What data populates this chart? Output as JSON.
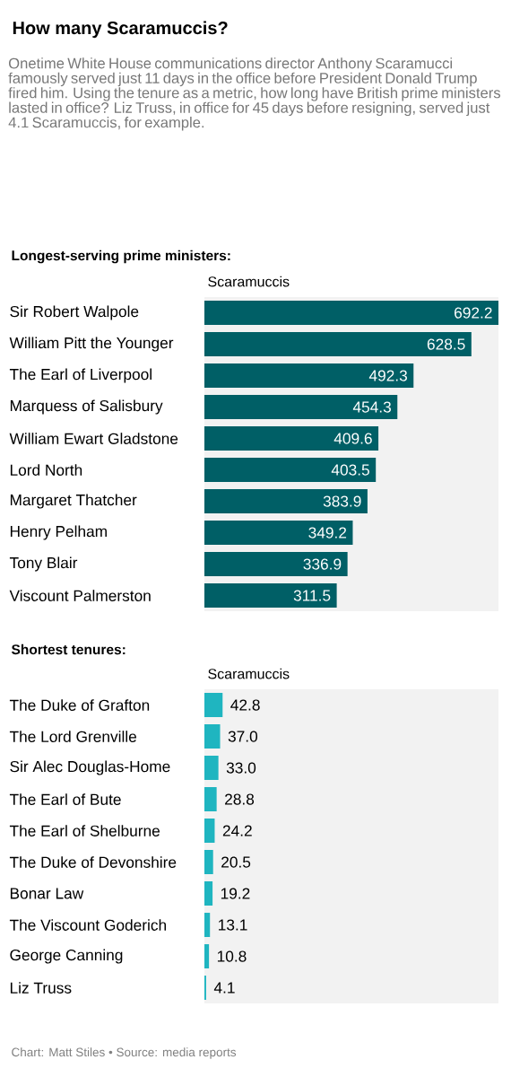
{
  "chart_data": [
    {
      "type": "bar",
      "orientation": "horizontal",
      "title": "How many Scaramuccis?",
      "subtitle": "Onetime White House communications director Anthony Scaramucci famously served just 11 days in the office before President Donald Trump fired him. Using the tenure as a metric, how long have British prime ministers lasted in office? Liz Truss, in office for 45 days before resigning, served just 4.1 Scaramuccis, for example.",
      "annotations": [
        "Longest-serving prime ministers:"
      ],
      "xlabel": "Scaramuccis",
      "categories": [
        "Sir Robert Walpole",
        "William Pitt the Younger",
        "The Earl of Liverpool",
        "Marquess of Salisbury",
        "William Ewart Gladstone",
        "Lord North",
        "Margaret Thatcher",
        "Henry Pelham",
        "Tony Blair",
        "Viscount Palmerston"
      ],
      "values": [
        692.2,
        628.5,
        492.3,
        454.3,
        409.6,
        403.5,
        383.9,
        349.2,
        336.9,
        311.5
      ],
      "value_labels": [
        "692.2",
        "628.5",
        "492.3",
        "454.3",
        "409.6",
        "403.5",
        "383.9",
        "349.2",
        "336.9",
        "311.5"
      ],
      "color": "#005f66",
      "xlim": [
        0,
        692.2
      ],
      "tick_labels": "y"
    },
    {
      "type": "bar",
      "orientation": "horizontal",
      "title": "Shortest tenures:",
      "annotations": [
        "Chart: Matt Stiles • Source: media reports"
      ],
      "xlabel": "Scaramuccis",
      "categories": [
        "The Duke of Grafton",
        "The Lord Grenville",
        "Sir Alec Douglas-Home",
        "The Earl of Bute",
        "The Earl of Shelburne",
        "The Duke of Devonshire",
        "Bonar Law",
        "The Viscount Goderich",
        "George Canning",
        "Liz Truss"
      ],
      "values": [
        42.8,
        37.0,
        33.0,
        28.8,
        24.2,
        20.5,
        19.2,
        13.1,
        10.8,
        4.1
      ],
      "value_labels": [
        "42.8",
        "37.0",
        "33.0",
        "28.8",
        "24.2",
        "20.5",
        "19.2",
        "13.1",
        "10.8",
        "4.1"
      ],
      "color": "#1fb5c0",
      "xlim": [
        0,
        692.2
      ],
      "tick_labels": "y"
    }
  ]
}
